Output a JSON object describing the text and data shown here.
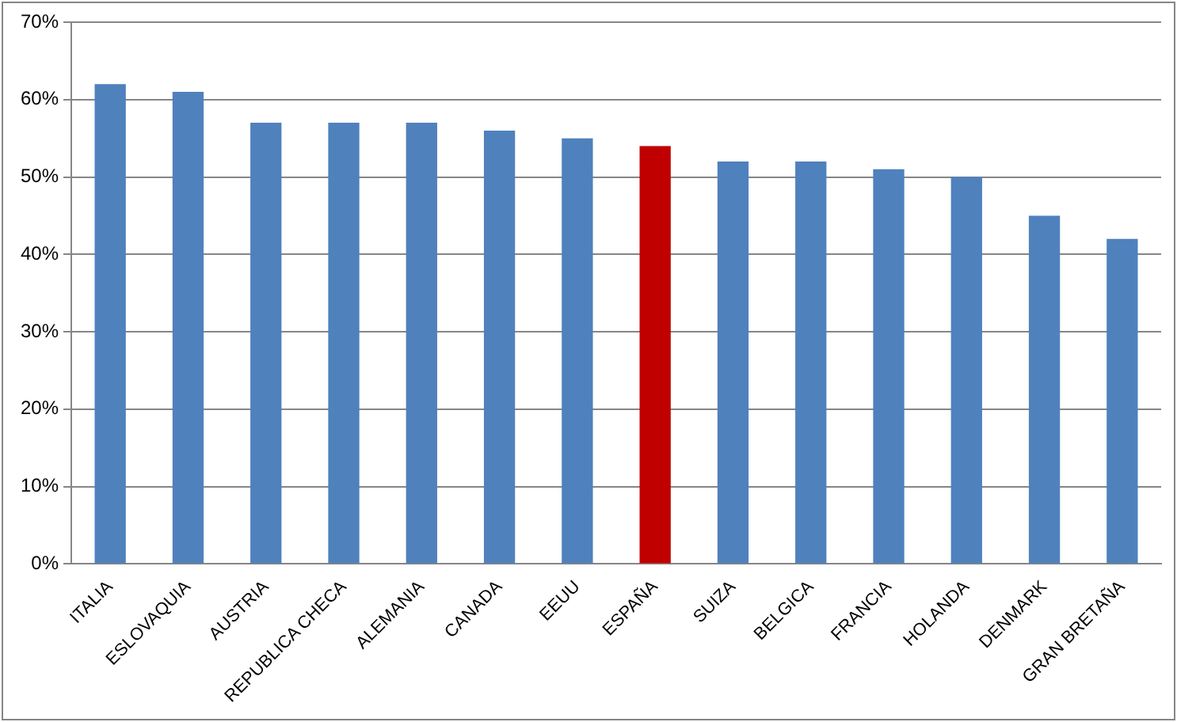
{
  "chart_data": {
    "type": "bar",
    "categories": [
      "ITALIA",
      "ESLOVAQUIA",
      "AUSTRIA",
      "REPUBLICA CHECA",
      "ALEMANIA",
      "CANADA",
      "EEUU",
      "ESPAÑA",
      "SUIZA",
      "BELGICA",
      "FRANCIA",
      "HOLANDA",
      "DENMARK",
      "GRAN BRETAÑA"
    ],
    "values": [
      62,
      61,
      57,
      57,
      57,
      56,
      55,
      54,
      52,
      52,
      51,
      50,
      45,
      42
    ],
    "colors": [
      "#4f81bd",
      "#4f81bd",
      "#4f81bd",
      "#4f81bd",
      "#4f81bd",
      "#4f81bd",
      "#4f81bd",
      "#c00000",
      "#4f81bd",
      "#4f81bd",
      "#4f81bd",
      "#4f81bd",
      "#4f81bd",
      "#4f81bd"
    ],
    "ylim": [
      0,
      70
    ],
    "yticks": [
      {
        "value": 0,
        "label": "0%"
      },
      {
        "value": 10,
        "label": "10%"
      },
      {
        "value": 20,
        "label": "20%"
      },
      {
        "value": 30,
        "label": "30%"
      },
      {
        "value": 40,
        "label": "40%"
      },
      {
        "value": 50,
        "label": "50%"
      },
      {
        "value": 60,
        "label": "60%"
      },
      {
        "value": 70,
        "label": "70%"
      }
    ],
    "grid": "y",
    "legend": false
  }
}
